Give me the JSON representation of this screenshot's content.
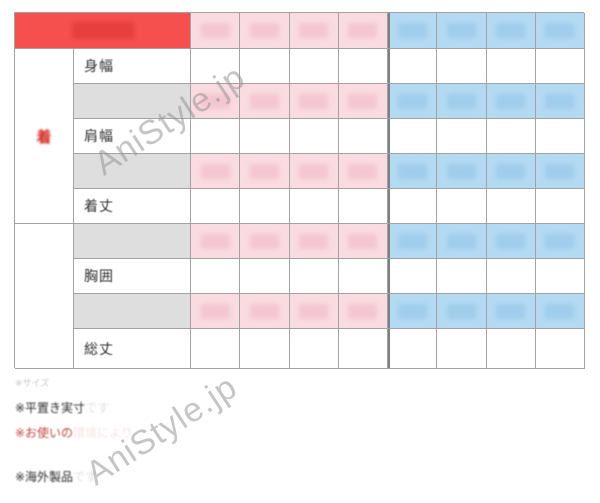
{
  "watermark": {
    "text": "AniStyle.jp",
    "color": "#969696"
  },
  "table": {
    "left_section_label": "着",
    "num_pink_columns": 4,
    "num_blue_columns": 4,
    "rows": [
      {
        "label": "身幅",
        "shade": "white"
      },
      {
        "label": "",
        "shade": "gray"
      },
      {
        "label": "肩幅",
        "shade": "white"
      },
      {
        "label": "",
        "shade": "gray"
      },
      {
        "label": "着丈",
        "shade": "white"
      },
      {
        "label": "",
        "shade": "gray"
      },
      {
        "label": "胸囲",
        "shade": "white"
      },
      {
        "label": "",
        "shade": "gray"
      },
      {
        "label": "総丈",
        "shade": "white"
      }
    ]
  },
  "notes": [
    {
      "text": "※サイズ",
      "tail": "",
      "color": "#c8c8c8"
    },
    {
      "text": "※平置き実寸",
      "tail": "です",
      "color": "#2b2b2b"
    },
    {
      "text": "※お使いの",
      "tail": "環境により",
      "color": "#c04438"
    },
    {
      "text": "※海外製品",
      "tail": "です",
      "color": "#2b2b2b"
    }
  ],
  "colors": {
    "header_red": "#f6504e",
    "pink_cell": "#fadbe2",
    "blue_cell": "#b4daf3",
    "gray_cell": "#dedede",
    "border": "#a3a3a3",
    "accent_text_red": "#cf2b20"
  }
}
